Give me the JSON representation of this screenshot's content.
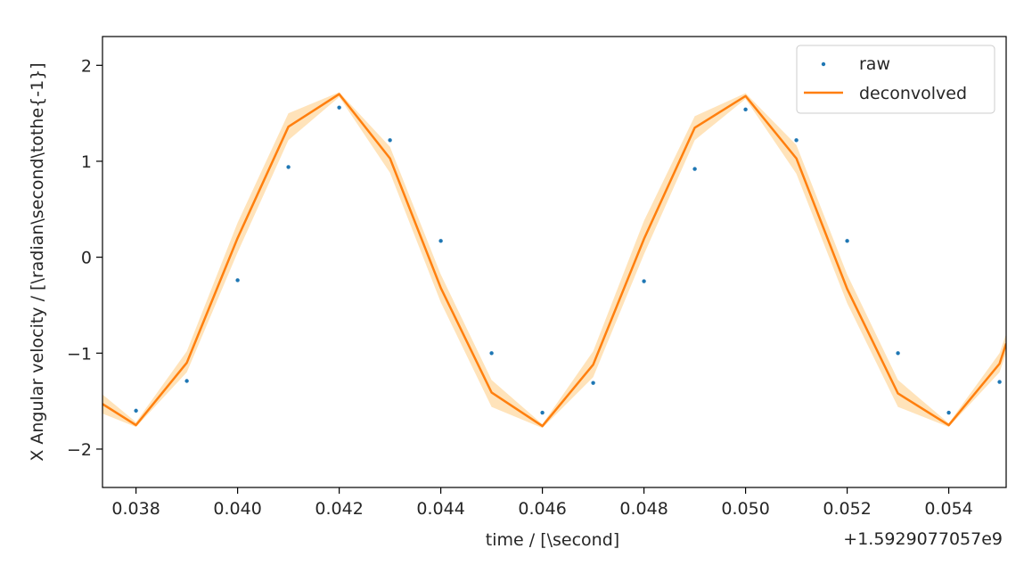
{
  "chart_data": {
    "type": "line",
    "title": "",
    "xlabel": "time / [\\second]",
    "ylabel": "X Angular velocity / [\\radian\\second\\tothe{-1}]",
    "x_offset_label": "+1.5929077057e9",
    "xlim": [
      0.03734,
      0.05513
    ],
    "ylim": [
      -2.4,
      2.3
    ],
    "x_ticks": [
      0.038,
      0.04,
      0.042,
      0.044,
      0.046,
      0.048,
      0.05,
      0.052,
      0.054
    ],
    "x_tick_labels": [
      "0.038",
      "0.040",
      "0.042",
      "0.044",
      "0.046",
      "0.048",
      "0.050",
      "0.052",
      "0.054"
    ],
    "y_ticks": [
      -2,
      -1,
      0,
      1,
      2
    ],
    "y_tick_labels": [
      "−2",
      "−1",
      "0",
      "1",
      "2"
    ],
    "grid": false,
    "legend_position": "top-right",
    "series": [
      {
        "name": "raw",
        "kind": "scatter",
        "color": "#1f77b4",
        "x": [
          0.038,
          0.039,
          0.04,
          0.041,
          0.042,
          0.043,
          0.044,
          0.045,
          0.046,
          0.047,
          0.048,
          0.049,
          0.05,
          0.051,
          0.052,
          0.053,
          0.054,
          0.055
        ],
        "y": [
          -1.6,
          -1.29,
          -0.24,
          0.94,
          1.56,
          1.22,
          0.17,
          -1.0,
          -1.62,
          -1.31,
          -0.25,
          0.92,
          1.54,
          1.22,
          0.17,
          -1.0,
          -1.62,
          -1.3
        ]
      },
      {
        "name": "deconvolved",
        "kind": "line",
        "color": "#ff7f0e",
        "band_color": "#ffe0b3",
        "x": [
          0.03734,
          0.038,
          0.039,
          0.04,
          0.041,
          0.042,
          0.043,
          0.044,
          0.045,
          0.046,
          0.047,
          0.048,
          0.049,
          0.05,
          0.051,
          0.052,
          0.053,
          0.054,
          0.055,
          0.05513
        ],
        "y": [
          -1.53,
          -1.75,
          -1.1,
          0.2,
          1.36,
          1.7,
          1.03,
          -0.32,
          -1.41,
          -1.76,
          -1.12,
          0.19,
          1.35,
          1.68,
          1.03,
          -0.33,
          -1.42,
          -1.75,
          -1.11,
          -0.9
        ],
        "lower": [
          -1.63,
          -1.77,
          -1.2,
          0.05,
          1.22,
          1.67,
          0.88,
          -0.47,
          -1.56,
          -1.78,
          -1.25,
          0.03,
          1.22,
          1.65,
          0.87,
          -0.48,
          -1.56,
          -1.77,
          -1.2,
          -1.0
        ],
        "upper": [
          -1.43,
          -1.72,
          -0.98,
          0.36,
          1.5,
          1.72,
          1.15,
          -0.18,
          -1.28,
          -1.74,
          -0.98,
          0.38,
          1.47,
          1.71,
          1.17,
          -0.18,
          -1.28,
          -1.73,
          -1.0,
          -0.8
        ]
      }
    ]
  }
}
